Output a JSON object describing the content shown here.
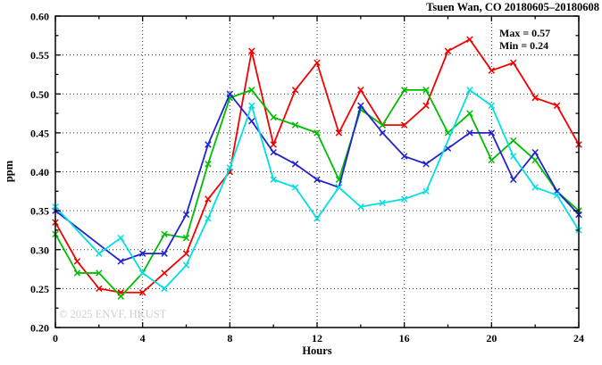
{
  "header": {
    "title": "Tsuen Wan, CO 20180605–20180608"
  },
  "annotation": {
    "max_label": "Max = 0.57",
    "min_label": "Min = 0.24"
  },
  "watermark": "© 2025 ENVF, HKUST",
  "chart_data": {
    "type": "line",
    "title": "Tsuen Wan, CO 20180605–20180608",
    "xlabel": "Hours",
    "ylabel": "ppm",
    "xlim": [
      0,
      24
    ],
    "ylim": [
      0.2,
      0.6
    ],
    "grid": true,
    "legend_position": "none",
    "x_major_ticks": [
      0,
      4,
      8,
      12,
      16,
      20,
      24
    ],
    "x_tick_labels": [
      "0",
      "4",
      "8",
      "12",
      "16",
      "20",
      "24"
    ],
    "x_minor_ticks": [
      2,
      6,
      10,
      14,
      18,
      22
    ],
    "y_major_ticks": [
      0.2,
      0.25,
      0.3,
      0.35,
      0.4,
      0.45,
      0.5,
      0.55,
      0.6
    ],
    "y_tick_labels": [
      "0.20",
      "0.25",
      "0.30",
      "0.35",
      "0.40",
      "0.45",
      "0.50",
      "0.55",
      "0.60"
    ],
    "y_minor_ticks": [
      0.225,
      0.275,
      0.325,
      0.375,
      0.425,
      0.475,
      0.525,
      0.575
    ],
    "max": 0.57,
    "min": 0.24,
    "x": [
      0,
      1,
      2,
      3,
      4,
      5,
      6,
      7,
      8,
      9,
      10,
      11,
      12,
      13,
      14,
      15,
      16,
      17,
      18,
      19,
      20,
      21,
      22,
      23,
      24
    ],
    "series": [
      {
        "name": "red",
        "color": "#f20000",
        "values": [
          0.335,
          0.285,
          0.25,
          0.245,
          0.245,
          0.27,
          0.295,
          0.365,
          0.4,
          0.555,
          0.435,
          0.505,
          0.54,
          0.45,
          0.505,
          0.46,
          0.46,
          0.485,
          0.555,
          0.57,
          0.53,
          0.54,
          0.495,
          0.485,
          0.435
        ]
      },
      {
        "name": "green",
        "color": "#00bd00",
        "values": [
          0.32,
          0.27,
          0.27,
          0.24,
          0.27,
          0.32,
          0.315,
          0.41,
          0.495,
          0.505,
          0.47,
          0.46,
          0.45,
          0.39,
          0.48,
          0.46,
          0.505,
          0.505,
          0.45,
          0.475,
          0.415,
          0.44,
          0.415,
          0.375,
          0.35
        ]
      },
      {
        "name": "blue",
        "color": "#2222d2",
        "values": [
          0.35,
          null,
          null,
          0.285,
          0.295,
          0.295,
          0.345,
          0.435,
          0.5,
          0.465,
          0.425,
          0.41,
          0.39,
          0.38,
          0.485,
          0.45,
          0.42,
          0.41,
          0.43,
          0.45,
          0.45,
          0.39,
          0.425,
          0.375,
          0.345
        ]
      },
      {
        "name": "cyan",
        "color": "#00e0e0",
        "values": [
          0.355,
          null,
          0.295,
          0.315,
          0.27,
          0.25,
          0.28,
          0.34,
          0.405,
          0.485,
          0.39,
          0.38,
          0.34,
          0.38,
          0.355,
          0.36,
          0.365,
          0.375,
          null,
          0.505,
          0.485,
          0.42,
          0.38,
          0.37,
          0.325
        ]
      }
    ]
  }
}
